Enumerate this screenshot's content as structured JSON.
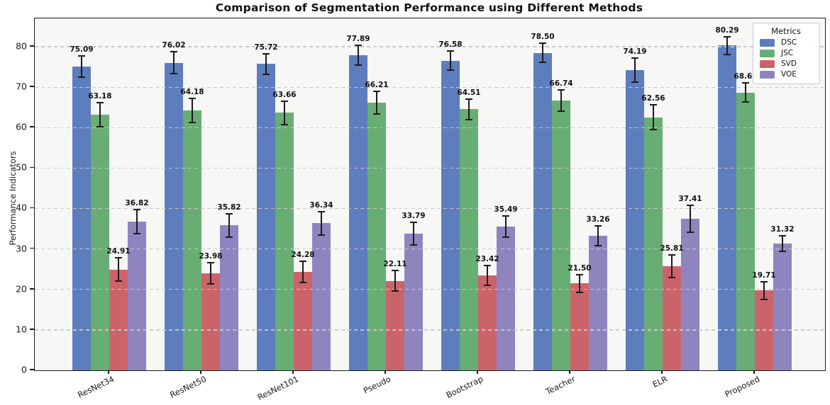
{
  "figure": {
    "title": "Comparison of Segmentation Performance using Different Methods",
    "ylabel": "Performance Indicators"
  },
  "legend": {
    "title": "Metrics",
    "entries": [
      "DSC",
      "JSC",
      "SVD",
      "VOE"
    ]
  },
  "chart_data": {
    "type": "bar",
    "title": "Comparison of Segmentation Performance using Different Methods",
    "xlabel": "",
    "ylabel": "Performance Indicators",
    "categories": [
      "ResNet34",
      "ResNet50",
      "ResNet101",
      "Pseudo",
      "Bootstrap",
      "Teacher",
      "ELR",
      "Proposed"
    ],
    "series": [
      {
        "name": "DSC",
        "color": "#5d7dbd",
        "values": [
          75.09,
          76.02,
          75.72,
          77.89,
          76.58,
          78.5,
          74.19,
          80.29
        ],
        "errors": [
          2.7,
          2.7,
          2.5,
          2.5,
          2.3,
          2.3,
          3.0,
          2.2
        ]
      },
      {
        "name": "JSC",
        "color": "#68ae74",
        "values": [
          63.18,
          64.18,
          63.66,
          66.21,
          64.51,
          66.74,
          62.56,
          68.68
        ],
        "errors": [
          3.0,
          3.0,
          2.9,
          2.8,
          2.5,
          2.6,
          3.1,
          2.4
        ]
      },
      {
        "name": "SVD",
        "color": "#cb646a",
        "values": [
          24.91,
          23.98,
          24.28,
          22.11,
          23.42,
          21.5,
          25.81,
          19.71
        ],
        "errors": [
          2.9,
          2.7,
          2.6,
          2.5,
          2.4,
          2.2,
          2.8,
          2.2
        ]
      },
      {
        "name": "VOE",
        "color": "#9084bf",
        "values": [
          36.82,
          35.82,
          36.34,
          33.79,
          35.49,
          33.26,
          37.41,
          31.32
        ],
        "errors": [
          3.0,
          2.9,
          2.9,
          2.8,
          2.6,
          2.5,
          3.3,
          2.0
        ]
      }
    ],
    "ylim": [
      0,
      87
    ],
    "yticks": [
      0,
      10,
      20,
      30,
      40,
      50,
      60,
      70,
      80
    ],
    "grid": "dashed-horizontal",
    "plot_background": "#f7f7f6",
    "legend_title": "Metrics",
    "legend_position": "upper-right",
    "error_bars": true,
    "bar_value_labels": true,
    "value_label_format": "0.00"
  }
}
